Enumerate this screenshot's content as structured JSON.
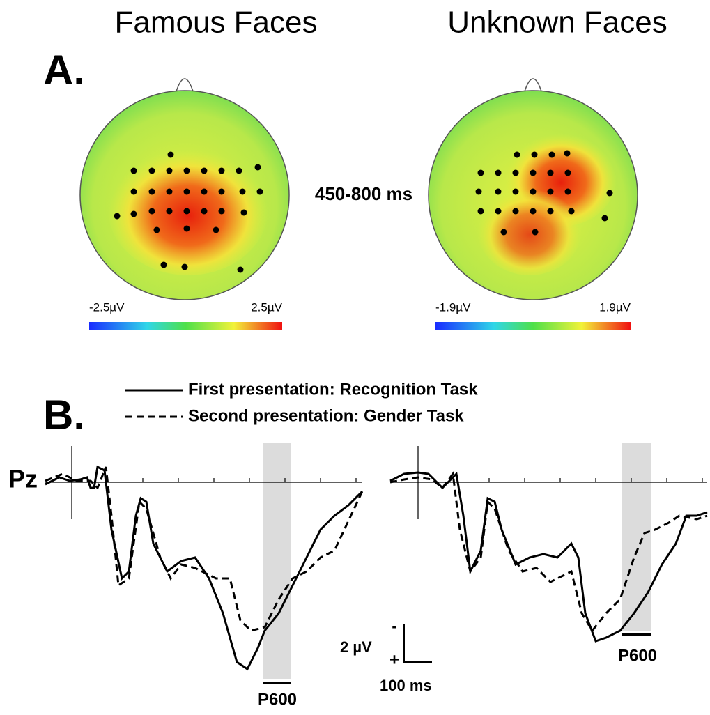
{
  "panel_a": {
    "label": "A.",
    "titles": [
      "Famous Faces",
      "Unknown Faces"
    ],
    "time_window": "450-800 ms",
    "scales": [
      {
        "min": "-2.5µV",
        "max": "2.5µV"
      },
      {
        "min": "-1.9µV",
        "max": "1.9µV"
      }
    ]
  },
  "panel_b": {
    "label": "B.",
    "legend": [
      "First presentation: Recognition Task",
      "Second presentation: Gender Task"
    ],
    "electrode": "Pz",
    "component": "P600",
    "scale_bar": {
      "minus": "-",
      "plus": "+",
      "amplitude": "2 µV",
      "time": "100 ms"
    }
  }
}
